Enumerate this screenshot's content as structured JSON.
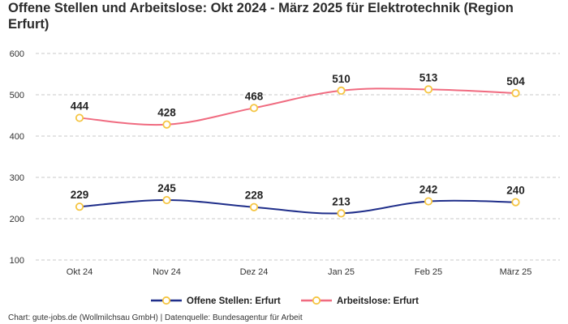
{
  "chart_data": {
    "type": "line",
    "title": "Offene Stellen und Arbeitslose: Okt 2024 - März 2025 für Elektrotechnik (Region Erfurt)",
    "categories": [
      "Okt 24",
      "Nov 24",
      "Dez 24",
      "Jan 25",
      "Feb 25",
      "März 25"
    ],
    "ylim": [
      100,
      600
    ],
    "yticks": [
      100,
      200,
      300,
      400,
      500,
      600
    ],
    "grid": true,
    "legend_position": "bottom-center",
    "series": [
      {
        "name": "Offene Stellen: Erfurt",
        "color": "#1f2e8a",
        "values": [
          229,
          245,
          228,
          213,
          242,
          240
        ]
      },
      {
        "name": "Arbeitslose: Erfurt",
        "color": "#f06b80",
        "values": [
          444,
          428,
          468,
          510,
          513,
          504
        ]
      }
    ],
    "marker_color": "#f5c542"
  },
  "footer": {
    "source": "Chart: gute-jobs.de (Wollmilchsau GmbH) | Datenquelle: Bundesagentur für Arbeit"
  }
}
